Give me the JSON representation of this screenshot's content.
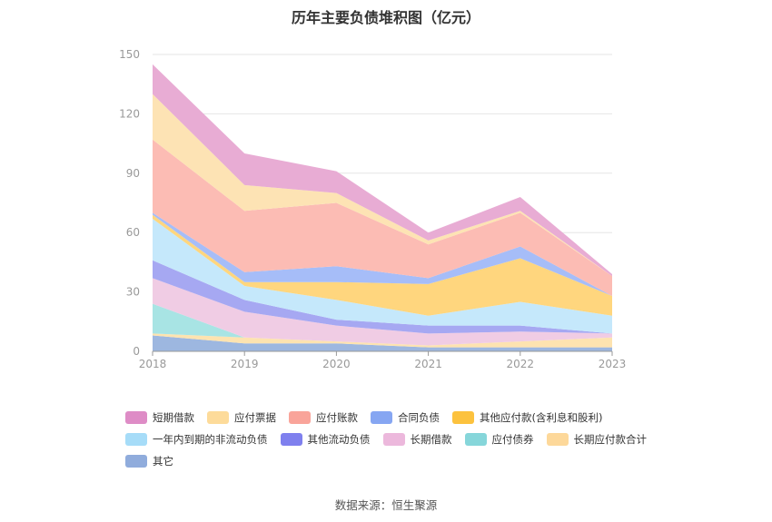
{
  "title": "历年主要负债堆积图（亿元）",
  "source": "数据来源：恒生聚源",
  "chart_data": {
    "type": "area",
    "stacked": true,
    "title": "历年主要负债堆积图（亿元）",
    "categories": [
      "2018",
      "2019",
      "2020",
      "2021",
      "2022",
      "2023"
    ],
    "ylim": [
      0,
      150
    ],
    "yticks": [
      0,
      30,
      60,
      90,
      120,
      150
    ],
    "grid": true,
    "legend_position": "bottom",
    "series": [
      {
        "name": "其它",
        "color": "#9db7e0",
        "values": [
          8,
          4,
          4,
          2,
          2,
          2
        ]
      },
      {
        "name": "长期应付款合计",
        "color": "#fde3b0",
        "values": [
          1,
          3,
          1,
          1,
          3,
          5
        ]
      },
      {
        "name": "应付债券",
        "color": "#a8e4e4",
        "values": [
          15,
          0,
          0,
          0,
          0,
          0
        ]
      },
      {
        "name": "长期借款",
        "color": "#f0cce4",
        "values": [
          13,
          13,
          8,
          6,
          5,
          2
        ]
      },
      {
        "name": "其他流动负债",
        "color": "#a6a8f2",
        "values": [
          9,
          6,
          3,
          4,
          3,
          0
        ]
      },
      {
        "name": "一年内到期的非流动负债",
        "color": "#c5e8fb",
        "values": [
          21,
          7,
          10,
          5,
          12,
          9
        ]
      },
      {
        "name": "其他应付款(含利息和股利)",
        "color": "#ffd67e",
        "values": [
          2,
          2,
          9,
          16,
          22,
          10
        ]
      },
      {
        "name": "合同负债",
        "color": "#a6bdf8",
        "values": [
          1,
          5,
          8,
          3,
          6,
          0
        ]
      },
      {
        "name": "应付账款",
        "color": "#fcbcb4",
        "values": [
          37,
          31,
          32,
          17,
          17,
          10
        ]
      },
      {
        "name": "应付票据",
        "color": "#fde3b4",
        "values": [
          23,
          13,
          5,
          2,
          1,
          0
        ]
      },
      {
        "name": "短期借款",
        "color": "#e8acd4",
        "values": [
          15,
          16,
          11,
          4,
          7,
          1
        ]
      }
    ]
  },
  "legend": [
    {
      "label": "短期借款",
      "color": "#de8cc6"
    },
    {
      "label": "应付票据",
      "color": "#fddb9a"
    },
    {
      "label": "应付账款",
      "color": "#f9a49a"
    },
    {
      "label": "合同负债",
      "color": "#86a6f2"
    },
    {
      "label": "其他应付款(含利息和股利)",
      "color": "#fcc23e"
    },
    {
      "label": "一年内到期的非流动负债",
      "color": "#a6dcf8"
    },
    {
      "label": "其他流动负债",
      "color": "#7f80ee"
    },
    {
      "label": "长期借款",
      "color": "#ecb8dc"
    },
    {
      "label": "应付债券",
      "color": "#86d6da"
    },
    {
      "label": "长期应付款合计",
      "color": "#fdd89a"
    },
    {
      "label": "其它",
      "color": "#90acdc"
    }
  ]
}
